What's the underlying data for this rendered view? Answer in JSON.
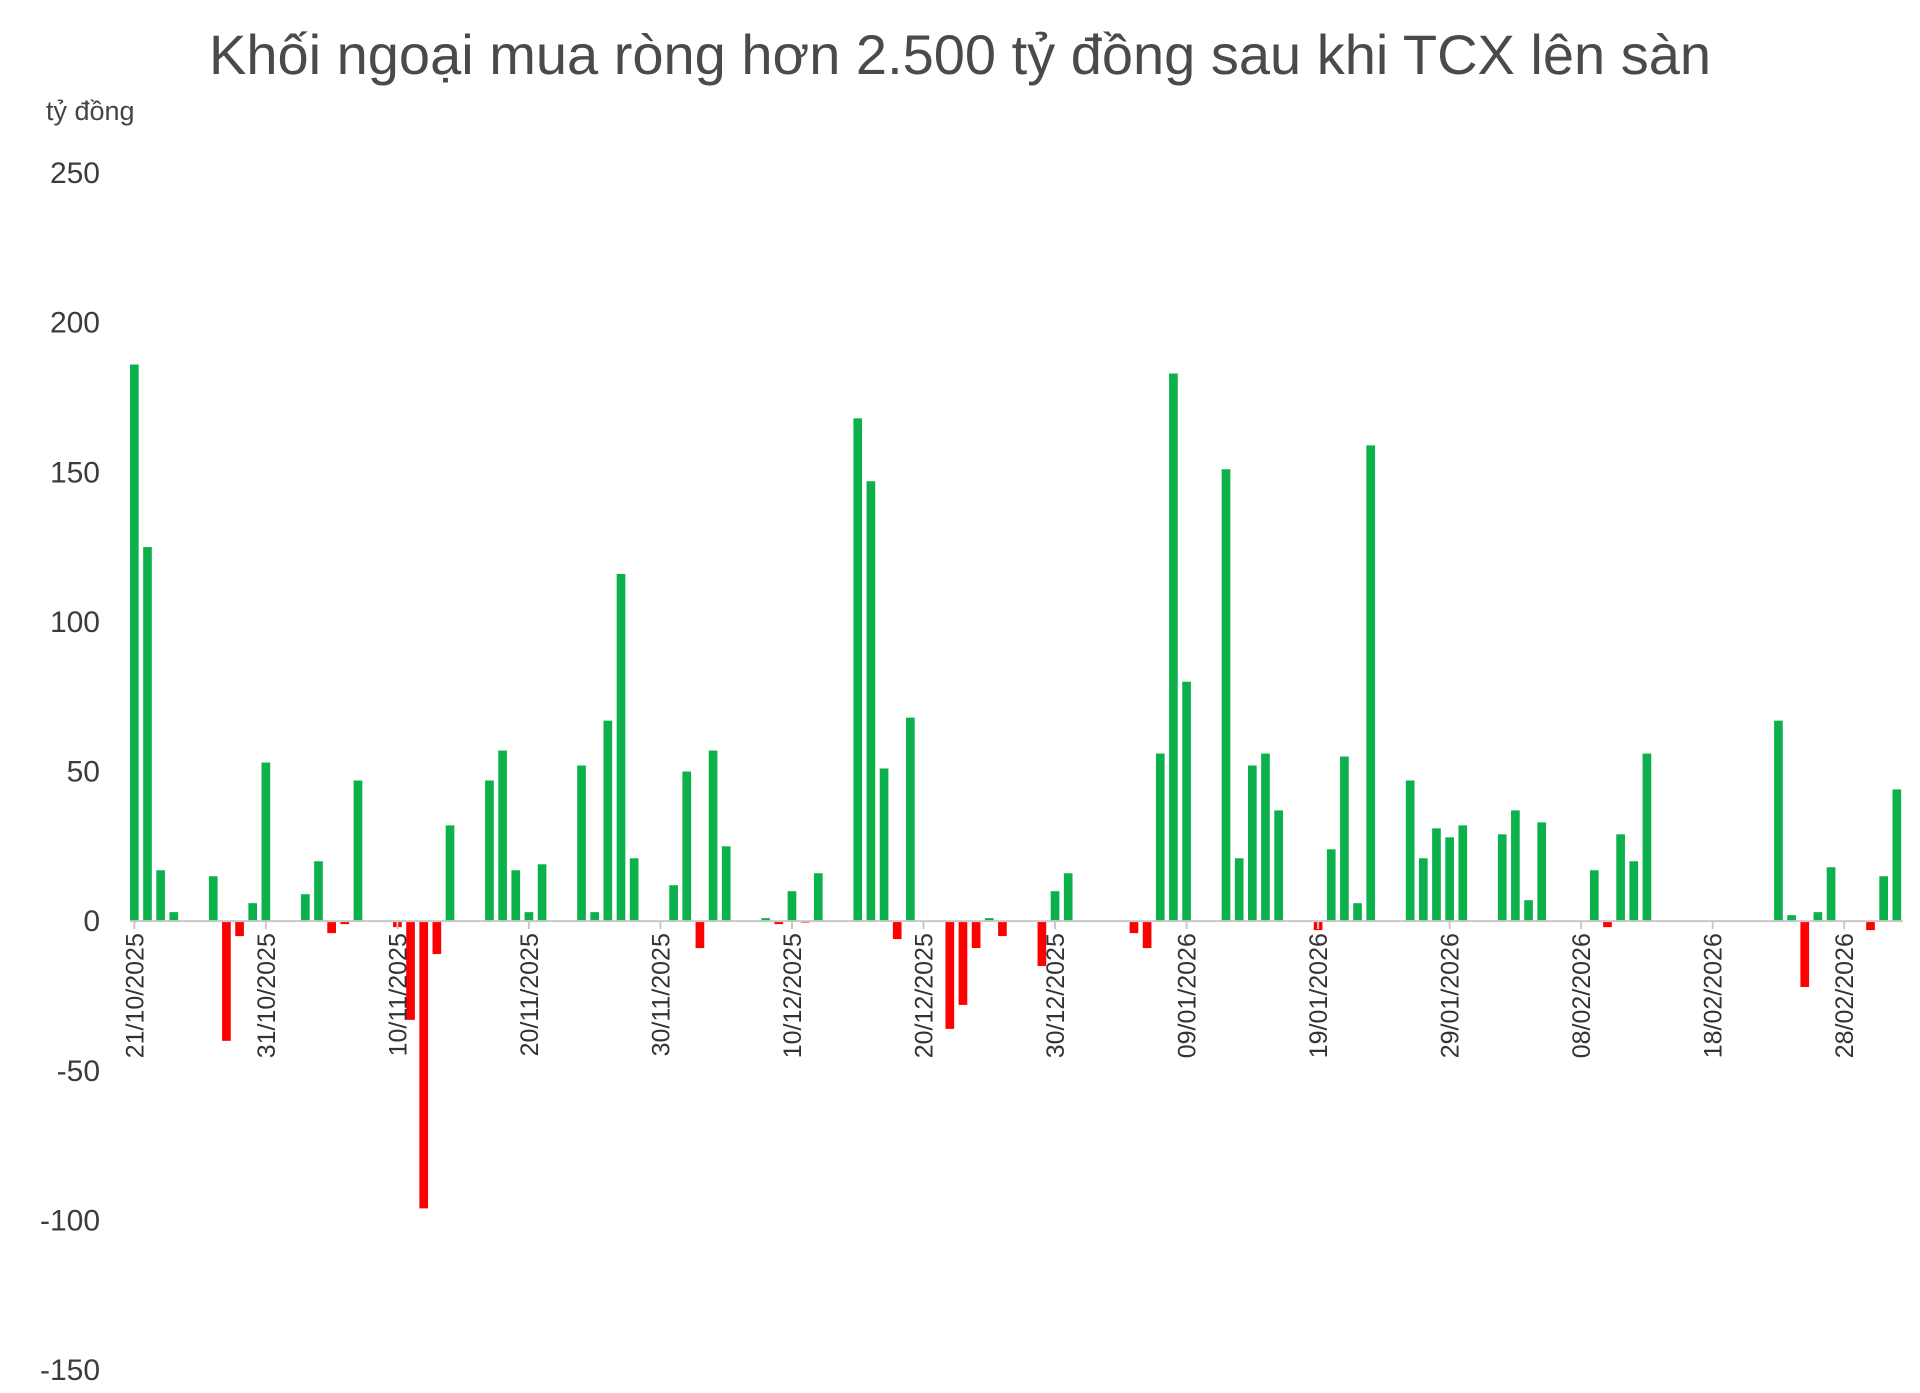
{
  "chart_data": {
    "type": "bar",
    "title": "Khối ngoại mua ròng hơn 2.500 tỷ đồng sau khi TCX lên sàn",
    "ylabel": "tỷ đồng",
    "xlabel": "",
    "ylim": [
      -150,
      250
    ],
    "yticks": [
      250,
      200,
      150,
      100,
      50,
      0,
      -50,
      -100,
      -150
    ],
    "grid": false,
    "positive_color": "#0db14b",
    "negative_color": "#ff0000",
    "x_start_date": "21/10/2025",
    "x_end_date": "04/03/2026",
    "x_tick_labels": [
      "21/10/2025",
      "31/10/2025",
      "10/11/2025",
      "20/11/2025",
      "30/11/2025",
      "10/12/2025",
      "20/12/2025",
      "30/12/2025",
      "09/01/2026",
      "19/01/2026",
      "29/01/2026",
      "08/02/2026",
      "18/02/2026",
      "28/02/2026"
    ],
    "points": [
      {
        "date": "21/10/2025",
        "value": 186
      },
      {
        "date": "22/10/2025",
        "value": 125
      },
      {
        "date": "23/10/2025",
        "value": 17
      },
      {
        "date": "24/10/2025",
        "value": 3
      },
      {
        "date": "27/10/2025",
        "value": 15
      },
      {
        "date": "28/10/2025",
        "value": -40
      },
      {
        "date": "29/10/2025",
        "value": -5
      },
      {
        "date": "30/10/2025",
        "value": 6
      },
      {
        "date": "31/10/2025",
        "value": 53
      },
      {
        "date": "03/11/2025",
        "value": 9
      },
      {
        "date": "04/11/2025",
        "value": 20
      },
      {
        "date": "05/11/2025",
        "value": -4
      },
      {
        "date": "06/11/2025",
        "value": -1
      },
      {
        "date": "07/11/2025",
        "value": 47
      },
      {
        "date": "10/11/2025",
        "value": -2
      },
      {
        "date": "11/11/2025",
        "value": -33
      },
      {
        "date": "12/11/2025",
        "value": -96
      },
      {
        "date": "13/11/2025",
        "value": -11
      },
      {
        "date": "14/11/2025",
        "value": 32
      },
      {
        "date": "17/11/2025",
        "value": 47
      },
      {
        "date": "18/11/2025",
        "value": 57
      },
      {
        "date": "19/11/2025",
        "value": 17
      },
      {
        "date": "20/11/2025",
        "value": 3
      },
      {
        "date": "21/11/2025",
        "value": 19
      },
      {
        "date": "24/11/2025",
        "value": 52
      },
      {
        "date": "25/11/2025",
        "value": 3
      },
      {
        "date": "26/11/2025",
        "value": 67
      },
      {
        "date": "27/11/2025",
        "value": 116
      },
      {
        "date": "28/11/2025",
        "value": 21
      },
      {
        "date": "01/12/2025",
        "value": 12
      },
      {
        "date": "02/12/2025",
        "value": 50
      },
      {
        "date": "03/12/2025",
        "value": -9
      },
      {
        "date": "04/12/2025",
        "value": 57
      },
      {
        "date": "05/12/2025",
        "value": 25
      },
      {
        "date": "08/12/2025",
        "value": 1
      },
      {
        "date": "09/12/2025",
        "value": -1
      },
      {
        "date": "10/12/2025",
        "value": 10
      },
      {
        "date": "11/12/2025",
        "value": -0.5
      },
      {
        "date": "12/12/2025",
        "value": 16
      },
      {
        "date": "15/12/2025",
        "value": 168
      },
      {
        "date": "16/12/2025",
        "value": 147
      },
      {
        "date": "17/12/2025",
        "value": 51
      },
      {
        "date": "18/12/2025",
        "value": -6
      },
      {
        "date": "19/12/2025",
        "value": 68
      },
      {
        "date": "22/12/2025",
        "value": -36
      },
      {
        "date": "23/12/2025",
        "value": -28
      },
      {
        "date": "24/12/2025",
        "value": -9
      },
      {
        "date": "25/12/2025",
        "value": 1
      },
      {
        "date": "26/12/2025",
        "value": -5
      },
      {
        "date": "29/12/2025",
        "value": -15
      },
      {
        "date": "30/12/2025",
        "value": 10
      },
      {
        "date": "31/12/2025",
        "value": 16
      },
      {
        "date": "05/01/2026",
        "value": -4
      },
      {
        "date": "06/01/2026",
        "value": -9
      },
      {
        "date": "07/01/2026",
        "value": 56
      },
      {
        "date": "08/01/2026",
        "value": 183
      },
      {
        "date": "09/01/2026",
        "value": 80
      },
      {
        "date": "12/01/2026",
        "value": 151
      },
      {
        "date": "13/01/2026",
        "value": 21
      },
      {
        "date": "14/01/2026",
        "value": 52
      },
      {
        "date": "15/01/2026",
        "value": 56
      },
      {
        "date": "16/01/2026",
        "value": 37
      },
      {
        "date": "19/01/2026",
        "value": -3
      },
      {
        "date": "20/01/2026",
        "value": 24
      },
      {
        "date": "21/01/2026",
        "value": 55
      },
      {
        "date": "22/01/2026",
        "value": 6
      },
      {
        "date": "23/01/2026",
        "value": 159
      },
      {
        "date": "26/01/2026",
        "value": 47
      },
      {
        "date": "27/01/2026",
        "value": 21
      },
      {
        "date": "28/01/2026",
        "value": 31
      },
      {
        "date": "29/01/2026",
        "value": 28
      },
      {
        "date": "30/01/2026",
        "value": 32
      },
      {
        "date": "02/02/2026",
        "value": 29
      },
      {
        "date": "03/02/2026",
        "value": 37
      },
      {
        "date": "04/02/2026",
        "value": 7
      },
      {
        "date": "05/02/2026",
        "value": 33
      },
      {
        "date": "09/02/2026",
        "value": 17
      },
      {
        "date": "10/02/2026",
        "value": -2
      },
      {
        "date": "11/02/2026",
        "value": 29
      },
      {
        "date": "12/02/2026",
        "value": 20
      },
      {
        "date": "13/02/2026",
        "value": 56
      },
      {
        "date": "23/02/2026",
        "value": 67
      },
      {
        "date": "24/02/2026",
        "value": 2
      },
      {
        "date": "25/02/2026",
        "value": -22
      },
      {
        "date": "26/02/2026",
        "value": 3
      },
      {
        "date": "27/02/2026",
        "value": 18
      },
      {
        "date": "02/03/2026",
        "value": -3
      },
      {
        "date": "03/03/2026",
        "value": 15
      },
      {
        "date": "04/03/2026",
        "value": 44
      }
    ]
  }
}
